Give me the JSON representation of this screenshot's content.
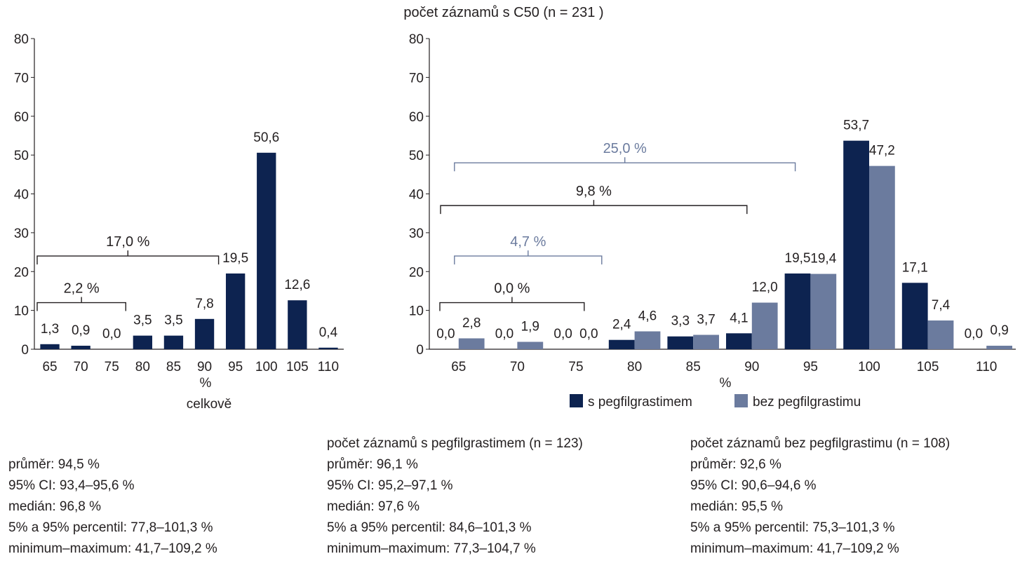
{
  "title": "počet záznamů s C50 (n = 231 )",
  "colors": {
    "dark": "#0d2350",
    "light": "#6b7b9e",
    "axis": "#231f20"
  },
  "chart_data": [
    {
      "type": "bar",
      "categories": [
        "65",
        "70",
        "75",
        "80",
        "85",
        "90",
        "95",
        "100",
        "105",
        "110"
      ],
      "values": [
        1.3,
        0.9,
        0.0,
        3.5,
        3.5,
        7.8,
        19.5,
        50.6,
        12.6,
        0.4
      ],
      "value_labels": [
        "1,3",
        "0,9",
        "0,0",
        "3,5",
        "3,5",
        "7,8",
        "19,5",
        "50,6",
        "12,6",
        "0,4"
      ],
      "yticks": [
        "0",
        "10",
        "20",
        "30",
        "40",
        "50",
        "60",
        "70",
        "80"
      ],
      "ylim": [
        0,
        80
      ],
      "xlabel": "%",
      "caption": "celkově",
      "brackets": [
        {
          "label": "17,0 %",
          "from": "65",
          "to": "90",
          "y": 24
        },
        {
          "label": "2,2 %",
          "from": "65",
          "to": "75",
          "y": 12
        }
      ]
    },
    {
      "type": "bar",
      "categories": [
        "65",
        "70",
        "75",
        "80",
        "85",
        "90",
        "95",
        "100",
        "105",
        "110"
      ],
      "series": [
        {
          "name": "s pegfilgrastimem",
          "values": [
            0.0,
            0.0,
            0.0,
            2.4,
            3.3,
            4.1,
            19.5,
            53.7,
            17.1,
            0.0
          ],
          "labels": [
            "0,0",
            "0,0",
            "0,0",
            "2,4",
            "3,3",
            "4,1",
            "19,5",
            "53,7",
            "17,1",
            "0,0"
          ]
        },
        {
          "name": "bez pegfilgrastimu",
          "values": [
            2.8,
            1.9,
            0.0,
            4.6,
            3.7,
            12.0,
            19.4,
            47.2,
            7.4,
            0.9
          ],
          "labels": [
            "2,8",
            "1,9",
            "0,0",
            "4,6",
            "3,7",
            "12,0",
            "19,4",
            "47,2",
            "7,4",
            "0,9"
          ]
        }
      ],
      "yticks": [
        "0",
        "10",
        "20",
        "30",
        "40",
        "50",
        "60",
        "70",
        "80"
      ],
      "ylim": [
        0,
        80
      ],
      "xlabel": "%",
      "legend_position": "bottom",
      "brackets": [
        {
          "label": "25,0 %",
          "from": "65",
          "to": "90",
          "y": 48,
          "series": "bez pegfilgrastimu"
        },
        {
          "label": "9,8 %",
          "from": "65",
          "to": "90",
          "y": 37,
          "series": "s pegfilgrastimem"
        },
        {
          "label": "4,7 %",
          "from": "65",
          "to": "75",
          "y": 24,
          "series": "bez pegfilgrastimu"
        },
        {
          "label": "0,0 %",
          "from": "65",
          "to": "75",
          "y": 12,
          "series": "s pegfilgrastimem"
        }
      ]
    }
  ],
  "stats": {
    "overall": {
      "heading": "",
      "lines": [
        "průměr: 94,5 %",
        "95% CI: 93,4–95,6 %",
        "medián: 96,8 %",
        "5% a 95% percentil: 77,8–101,3 %",
        "minimum–maximum: 41,7–109,2 %"
      ]
    },
    "with": {
      "heading": "počet záznamů s pegfilgrastimem (n = 123)",
      "lines": [
        "průměr: 96,1 %",
        "95% CI: 95,2–97,1 %",
        "medián: 97,6 %",
        "5% a 95% percentil: 84,6–101,3 %",
        "minimum–maximum: 77,3–104,7 %"
      ]
    },
    "without": {
      "heading": "počet záznamů bez pegfilgrastimu (n = 108)",
      "lines": [
        "průměr: 92,6 %",
        "95% CI: 90,6–94,6 %",
        "medián: 95,5 %",
        "5% a 95% percentil: 75,3–101,3 %",
        "minimum–maximum: 41,7–109,2 %"
      ]
    }
  }
}
